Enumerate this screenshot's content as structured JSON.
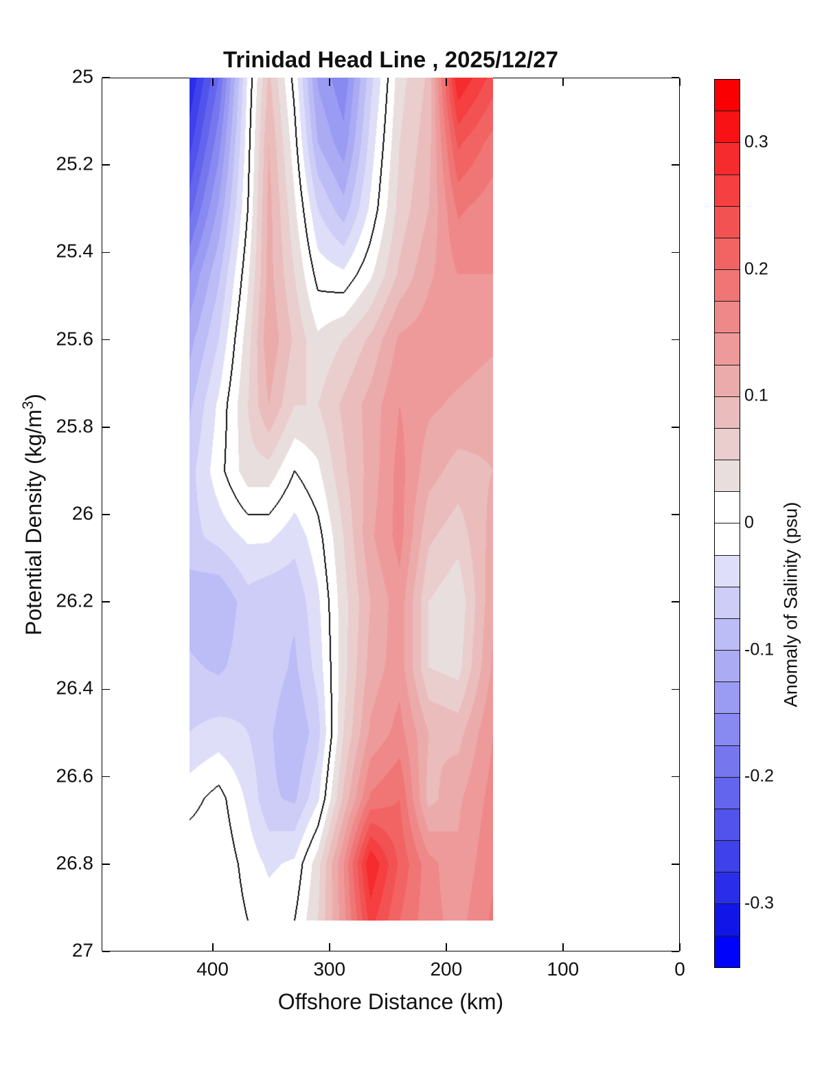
{
  "title": "Trinidad Head Line , 2025/12/27",
  "x_axis": {
    "label": "Offshore Distance (km)",
    "tick_labels": [
      "400",
      "300",
      "200",
      "100",
      "0"
    ],
    "tick_values": [
      400,
      300,
      200,
      100,
      0
    ],
    "range_km": [
      495,
      0
    ],
    "direction": "reversed"
  },
  "y_axis": {
    "label_prefix": "Potential Density (kg/m",
    "label_sup": "3",
    "label_suffix": ")",
    "tick_labels": [
      "25",
      "25.2",
      "25.4",
      "25.6",
      "25.8",
      "26",
      "26.2",
      "26.4",
      "26.6",
      "26.8",
      "27"
    ],
    "tick_values": [
      25,
      25.2,
      25.4,
      25.6,
      25.8,
      26,
      26.2,
      26.4,
      26.6,
      26.8,
      27
    ],
    "range": [
      25,
      27
    ],
    "direction": "increasing-downward"
  },
  "colorbar": {
    "label": "Anomaly of Salinity (psu)",
    "tick_labels": [
      "0.3",
      "0.2",
      "0.1",
      "0",
      "-0.1",
      "-0.2",
      "-0.3"
    ],
    "tick_values": [
      0.3,
      0.2,
      0.1,
      0,
      -0.1,
      -0.2,
      -0.3
    ],
    "range": [
      -0.35,
      0.35
    ],
    "level_step": 0.025,
    "colors_low_to_high": [
      "#0003FA",
      "#1215E7",
      "#2B2EE9",
      "#3F41EA",
      "#5253EC",
      "#6465EE",
      "#7677EF",
      "#8889F1",
      "#9A9BF3",
      "#ABABF4",
      "#BCBCF6",
      "#CDCDF8",
      "#DEDEF9",
      "#FFFFFF",
      "#FFFFFF",
      "#E9DEDE",
      "#EACDCD",
      "#EBBCBC",
      "#ECABAB",
      "#EE9A9A",
      "#EF8888",
      "#F07676",
      "#F26464",
      "#F35252",
      "#F53F40",
      "#F62B2E",
      "#F81215",
      "#FA0003"
    ]
  },
  "chart_data": {
    "type": "heatmap",
    "style": "filled-contour-with-zero-contour-line",
    "title": "Trinidad Head Line , 2025/12/27",
    "xlabel": "Offshore Distance (km)",
    "ylabel": "Potential Density (kg/m3)",
    "zlabel": "Anomaly of Salinity (psu)",
    "x_range_km": [
      420,
      160
    ],
    "y_range_density": [
      25.0,
      26.93
    ],
    "zlim": [
      -0.35,
      0.35
    ],
    "zero_contour_color": "#000000",
    "x_km": [
      420,
      395,
      370,
      352,
      330,
      310,
      288,
      265,
      240,
      215,
      190,
      160
    ],
    "density": [
      25.0,
      25.15,
      25.3,
      25.45,
      25.6,
      25.75,
      25.9,
      26.05,
      26.2,
      26.35,
      26.5,
      26.65,
      26.8,
      26.93
    ],
    "values": [
      [
        -0.3,
        -0.2,
        -0.02,
        0.08,
        -0.01,
        -0.13,
        -0.17,
        -0.06,
        0.04,
        0.08,
        0.3,
        0.24
      ],
      [
        -0.26,
        -0.16,
        -0.01,
        0.1,
        0.01,
        -0.1,
        -0.14,
        -0.04,
        0.05,
        0.09,
        0.23,
        0.19
      ],
      [
        -0.21,
        -0.12,
        0.0,
        0.11,
        0.03,
        -0.05,
        -0.09,
        -0.02,
        0.06,
        0.1,
        0.18,
        0.16
      ],
      [
        -0.15,
        -0.08,
        0.02,
        0.11,
        0.05,
        -0.01,
        -0.02,
        0.02,
        0.08,
        0.12,
        0.15,
        0.15
      ],
      [
        -0.11,
        -0.05,
        0.04,
        0.12,
        0.07,
        0.03,
        0.05,
        0.08,
        0.13,
        0.14,
        0.14,
        0.13
      ],
      [
        -0.08,
        -0.02,
        0.05,
        0.1,
        0.05,
        0.05,
        0.08,
        0.11,
        0.15,
        0.13,
        0.12,
        0.11
      ],
      [
        -0.06,
        -0.01,
        0.04,
        0.04,
        0.0,
        0.02,
        0.07,
        0.11,
        0.16,
        0.11,
        0.09,
        0.1
      ],
      [
        -0.06,
        -0.04,
        -0.02,
        -0.02,
        -0.04,
        -0.01,
        0.05,
        0.12,
        0.16,
        0.08,
        0.06,
        0.11
      ],
      [
        -0.09,
        -0.1,
        -0.06,
        -0.07,
        -0.07,
        -0.03,
        0.04,
        0.1,
        0.14,
        0.05,
        0.03,
        0.12
      ],
      [
        -0.07,
        -0.08,
        -0.06,
        -0.06,
        -0.08,
        -0.04,
        0.04,
        0.11,
        0.14,
        0.05,
        0.04,
        0.13
      ],
      [
        -0.05,
        -0.04,
        -0.05,
        -0.07,
        -0.1,
        -0.06,
        0.05,
        0.13,
        0.16,
        0.1,
        0.09,
        0.15
      ],
      [
        -0.01,
        0.01,
        -0.03,
        -0.07,
        -0.08,
        -0.03,
        0.08,
        0.18,
        0.2,
        0.09,
        0.12,
        0.16
      ],
      [
        0.02,
        0.02,
        -0.01,
        -0.03,
        -0.02,
        0.04,
        0.15,
        0.3,
        0.22,
        0.16,
        0.13,
        0.17
      ],
      [
        0.02,
        0.02,
        0.0,
        -0.01,
        0.0,
        0.05,
        0.14,
        0.26,
        0.2,
        0.16,
        0.14,
        0.18
      ]
    ]
  }
}
